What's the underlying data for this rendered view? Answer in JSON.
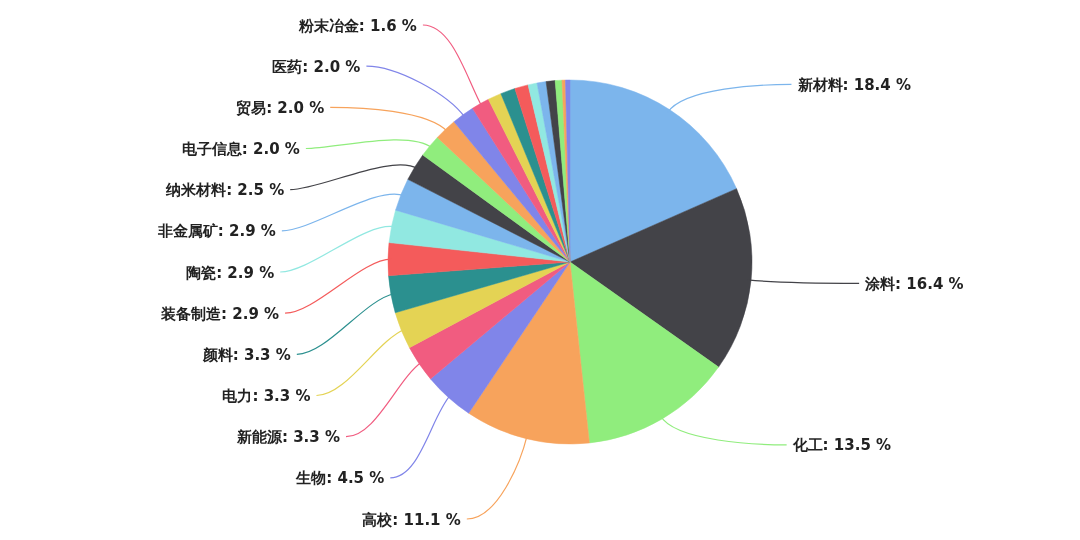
{
  "chart_data": {
    "type": "pie",
    "categories": [
      "新材料",
      "涂料",
      "化工",
      "高校",
      "生物",
      "新能源",
      "电力",
      "颜料",
      "装备制造",
      "陶瓷",
      "非金属矿",
      "纳米材料",
      "电子信息",
      "贸易",
      "医药",
      "粉末冶金",
      null,
      null,
      null,
      null,
      null,
      null,
      null,
      null,
      null
    ],
    "values": [
      18.4,
      16.4,
      13.5,
      11.1,
      4.5,
      3.3,
      3.3,
      3.3,
      2.9,
      2.9,
      2.9,
      2.5,
      2.0,
      2.0,
      2.0,
      1.6,
      1.2,
      1.3,
      1.2,
      0.8,
      0.8,
      0.8,
      0.6,
      0.3,
      0.4
    ],
    "value_labels": [
      "18.4 %",
      "16.4 %",
      "13.5 %",
      "11.1 %",
      "4.5 %",
      "3.3 %",
      "3.3 %",
      "3.3 %",
      "2.9 %",
      "2.9 %",
      "2.9 %",
      "2.5 %",
      "2.0 %",
      "2.0 %",
      "2.0 %",
      "1.6 %",
      null,
      null,
      null,
      null,
      null,
      null,
      null,
      null,
      null
    ],
    "colors": [
      "#7cb5ec",
      "#434348",
      "#90ed7d",
      "#f7a35c",
      "#8085e9",
      "#f15c80",
      "#e4d354",
      "#2b908f",
      "#f45b5b",
      "#91e8e1",
      "#7cb5ec",
      "#434348",
      "#90ed7d",
      "#f7a35c",
      "#8085e9",
      "#f15c80",
      "#e4d354",
      "#2b908f",
      "#f45b5b",
      "#91e8e1",
      "#7cb5ec",
      "#434348",
      "#90ed7d",
      "#f7a35c",
      "#8085e9"
    ]
  }
}
